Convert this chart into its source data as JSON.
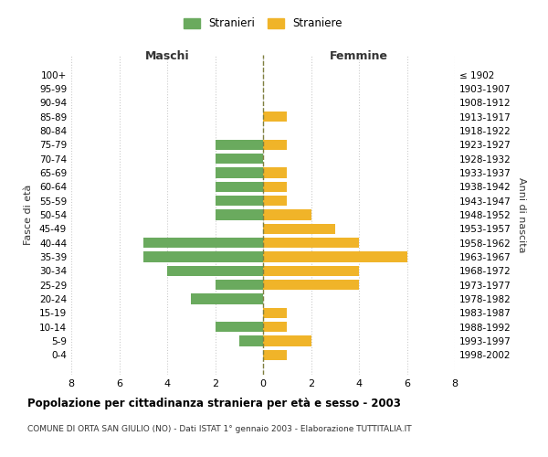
{
  "age_groups": [
    "100+",
    "95-99",
    "90-94",
    "85-89",
    "80-84",
    "75-79",
    "70-74",
    "65-69",
    "60-64",
    "55-59",
    "50-54",
    "45-49",
    "40-44",
    "35-39",
    "30-34",
    "25-29",
    "20-24",
    "15-19",
    "10-14",
    "5-9",
    "0-4"
  ],
  "birth_years": [
    "≤ 1902",
    "1903-1907",
    "1908-1912",
    "1913-1917",
    "1918-1922",
    "1923-1927",
    "1928-1932",
    "1933-1937",
    "1938-1942",
    "1943-1947",
    "1948-1952",
    "1953-1957",
    "1958-1962",
    "1963-1967",
    "1968-1972",
    "1973-1977",
    "1978-1982",
    "1983-1987",
    "1988-1992",
    "1993-1997",
    "1998-2002"
  ],
  "maschi": [
    0,
    0,
    0,
    0,
    0,
    2,
    2,
    2,
    2,
    2,
    2,
    0,
    5,
    5,
    4,
    2,
    3,
    0,
    2,
    1,
    0
  ],
  "femmine": [
    0,
    0,
    0,
    1,
    0,
    1,
    0,
    1,
    1,
    1,
    2,
    3,
    4,
    6,
    4,
    4,
    0,
    1,
    1,
    2,
    1
  ],
  "male_color": "#6aaa5e",
  "female_color": "#f0b429",
  "grid_color": "#cccccc",
  "center_line_color": "#808040",
  "title": "Popolazione per cittadinanza straniera per età e sesso - 2003",
  "subtitle": "COMUNE DI ORTA SAN GIULIO (NO) - Dati ISTAT 1° gennaio 2003 - Elaborazione TUTTITALIA.IT",
  "xlabel_left": "Maschi",
  "xlabel_right": "Femmine",
  "ylabel_left": "Fasce di età",
  "ylabel_right": "Anni di nascita",
  "legend_male": "Stranieri",
  "legend_female": "Straniere",
  "xlim": 8,
  "background_color": "#ffffff"
}
